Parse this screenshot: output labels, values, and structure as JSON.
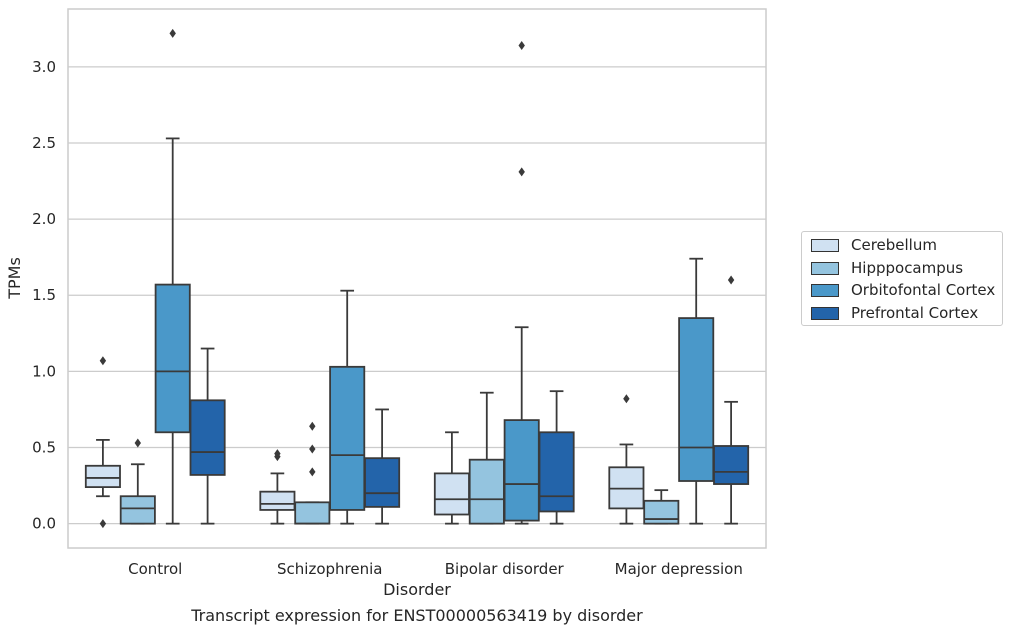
{
  "chart_data": {
    "type": "box",
    "title": "",
    "caption": "Transcript expression for ENST00000563419 by disorder",
    "xlabel": "Disorder",
    "ylabel": "TPMs",
    "ylim": [
      -0.16,
      3.38
    ],
    "yticks": [
      0.0,
      0.5,
      1.0,
      1.5,
      2.0,
      2.5,
      3.0
    ],
    "ytick_labels": [
      "0.0",
      "0.5",
      "1.0",
      "1.5",
      "2.0",
      "2.5",
      "3.0"
    ],
    "grid": "horizontal",
    "legend_position": "right",
    "categories": [
      "Control",
      "Schizophrenia",
      "Bipolar disorder",
      "Major depression"
    ],
    "series": [
      {
        "name": "Cerebellum",
        "color": "#d0e1f2",
        "boxes": [
          {
            "whisker_low": 0.18,
            "q1": 0.24,
            "median": 0.3,
            "q3": 0.38,
            "whisker_high": 0.55,
            "outliers": [
              1.07,
              0.0
            ]
          },
          {
            "whisker_low": 0.0,
            "q1": 0.09,
            "median": 0.13,
            "q3": 0.21,
            "whisker_high": 0.33,
            "outliers": [
              0.44,
              0.46
            ]
          },
          {
            "whisker_low": 0.0,
            "q1": 0.06,
            "median": 0.16,
            "q3": 0.33,
            "whisker_high": 0.6,
            "outliers": []
          },
          {
            "whisker_low": 0.0,
            "q1": 0.1,
            "median": 0.23,
            "q3": 0.37,
            "whisker_high": 0.52,
            "outliers": [
              0.82
            ]
          }
        ]
      },
      {
        "name": "Hipppocampus",
        "color": "#94c4df",
        "boxes": [
          {
            "whisker_low": 0.0,
            "q1": 0.0,
            "median": 0.1,
            "q3": 0.18,
            "whisker_high": 0.39,
            "outliers": [
              0.53
            ]
          },
          {
            "whisker_low": 0.0,
            "q1": 0.0,
            "median": 0.0,
            "q3": 0.14,
            "whisker_high": 0.14,
            "outliers": [
              0.34,
              0.49,
              0.64
            ]
          },
          {
            "whisker_low": 0.0,
            "q1": 0.0,
            "median": 0.16,
            "q3": 0.42,
            "whisker_high": 0.86,
            "outliers": []
          },
          {
            "whisker_low": 0.0,
            "q1": 0.0,
            "median": 0.03,
            "q3": 0.15,
            "whisker_high": 0.22,
            "outliers": []
          }
        ]
      },
      {
        "name": "Orbitofontal Cortex",
        "color": "#4a98c9",
        "boxes": [
          {
            "whisker_low": 0.0,
            "q1": 0.6,
            "median": 1.0,
            "q3": 1.57,
            "whisker_high": 2.53,
            "outliers": [
              3.22
            ]
          },
          {
            "whisker_low": 0.0,
            "q1": 0.09,
            "median": 0.45,
            "q3": 1.03,
            "whisker_high": 1.53,
            "outliers": []
          },
          {
            "whisker_low": 0.0,
            "q1": 0.02,
            "median": 0.26,
            "q3": 0.68,
            "whisker_high": 1.29,
            "outliers": [
              2.31,
              3.14
            ]
          },
          {
            "whisker_low": 0.0,
            "q1": 0.28,
            "median": 0.5,
            "q3": 1.35,
            "whisker_high": 1.74,
            "outliers": []
          }
        ]
      },
      {
        "name": "Prefrontal Cortex",
        "color": "#2364aa",
        "boxes": [
          {
            "whisker_low": 0.0,
            "q1": 0.32,
            "median": 0.47,
            "q3": 0.81,
            "whisker_high": 1.15,
            "outliers": []
          },
          {
            "whisker_low": 0.0,
            "q1": 0.11,
            "median": 0.2,
            "q3": 0.43,
            "whisker_high": 0.75,
            "outliers": []
          },
          {
            "whisker_low": 0.0,
            "q1": 0.08,
            "median": 0.18,
            "q3": 0.6,
            "whisker_high": 0.87,
            "outliers": []
          },
          {
            "whisker_low": 0.0,
            "q1": 0.26,
            "median": 0.34,
            "q3": 0.51,
            "whisker_high": 0.8,
            "outliers": [
              1.6
            ]
          }
        ]
      }
    ]
  }
}
